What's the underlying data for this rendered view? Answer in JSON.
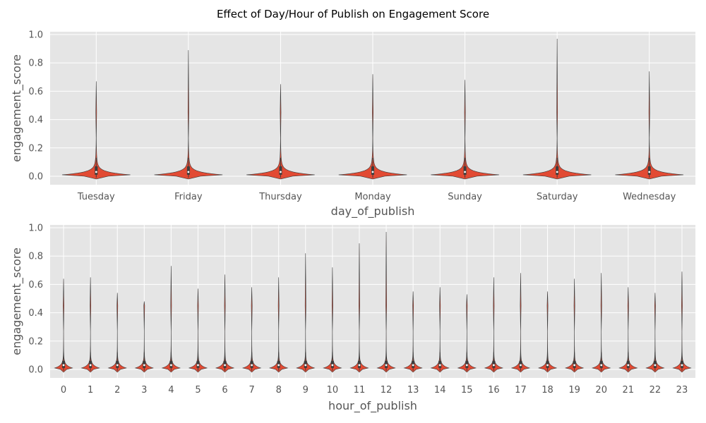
{
  "figure": {
    "title": "Effect of Day/Hour of Publish on Engagement Score"
  },
  "chart_data": [
    {
      "type": "violin",
      "xlabel": "day_of_publish",
      "ylabel": "engagement_score",
      "ylim": [
        -0.06,
        1.02
      ],
      "yticks": [
        "0.0",
        "0.2",
        "0.4",
        "0.6",
        "0.8",
        "1.0"
      ],
      "grid": true,
      "color": "#e24a33",
      "categories": [
        "Tuesday",
        "Friday",
        "Thursday",
        "Monday",
        "Sunday",
        "Saturday",
        "Wednesday"
      ],
      "max": [
        0.67,
        0.89,
        0.65,
        0.72,
        0.68,
        0.97,
        0.74
      ],
      "min": [
        -0.02,
        -0.02,
        -0.02,
        -0.02,
        -0.02,
        -0.02,
        -0.02
      ],
      "q1": [
        0.01,
        0.01,
        0.01,
        0.01,
        0.01,
        0.01,
        0.01
      ],
      "median": [
        0.03,
        0.03,
        0.03,
        0.03,
        0.03,
        0.03,
        0.03
      ],
      "q3": [
        0.07,
        0.07,
        0.07,
        0.07,
        0.07,
        0.07,
        0.07
      ]
    },
    {
      "type": "violin",
      "xlabel": "hour_of_publish",
      "ylabel": "engagement_score",
      "ylim": [
        -0.06,
        1.02
      ],
      "yticks": [
        "0.0",
        "0.2",
        "0.4",
        "0.6",
        "0.8",
        "1.0"
      ],
      "grid": true,
      "color": "#e24a33",
      "categories": [
        "0",
        "1",
        "2",
        "3",
        "4",
        "5",
        "6",
        "7",
        "8",
        "9",
        "10",
        "11",
        "12",
        "13",
        "14",
        "15",
        "16",
        "17",
        "18",
        "19",
        "20",
        "21",
        "22",
        "23"
      ],
      "max": [
        0.64,
        0.65,
        0.54,
        0.48,
        0.73,
        0.57,
        0.67,
        0.58,
        0.65,
        0.82,
        0.72,
        0.89,
        0.97,
        0.55,
        0.58,
        0.53,
        0.65,
        0.68,
        0.55,
        0.64,
        0.68,
        0.58,
        0.54,
        0.69
      ],
      "min": [
        -0.02,
        -0.02,
        -0.02,
        -0.02,
        -0.02,
        -0.02,
        -0.02,
        -0.02,
        -0.02,
        -0.02,
        -0.02,
        -0.02,
        -0.02,
        -0.02,
        -0.02,
        -0.02,
        -0.02,
        -0.02,
        -0.02,
        -0.02,
        -0.02,
        -0.02,
        -0.02,
        -0.02
      ],
      "q1": [
        0.01,
        0.01,
        0.01,
        0.01,
        0.01,
        0.01,
        0.01,
        0.01,
        0.01,
        0.01,
        0.01,
        0.01,
        0.01,
        0.01,
        0.01,
        0.01,
        0.01,
        0.01,
        0.01,
        0.01,
        0.01,
        0.01,
        0.01,
        0.01
      ],
      "median": [
        0.03,
        0.03,
        0.03,
        0.03,
        0.03,
        0.03,
        0.03,
        0.03,
        0.03,
        0.03,
        0.03,
        0.03,
        0.03,
        0.03,
        0.03,
        0.03,
        0.03,
        0.03,
        0.03,
        0.03,
        0.03,
        0.03,
        0.03,
        0.03
      ],
      "q3": [
        0.06,
        0.06,
        0.06,
        0.06,
        0.06,
        0.06,
        0.06,
        0.06,
        0.06,
        0.06,
        0.06,
        0.06,
        0.06,
        0.06,
        0.06,
        0.06,
        0.06,
        0.06,
        0.06,
        0.06,
        0.06,
        0.06,
        0.06,
        0.06
      ]
    }
  ]
}
